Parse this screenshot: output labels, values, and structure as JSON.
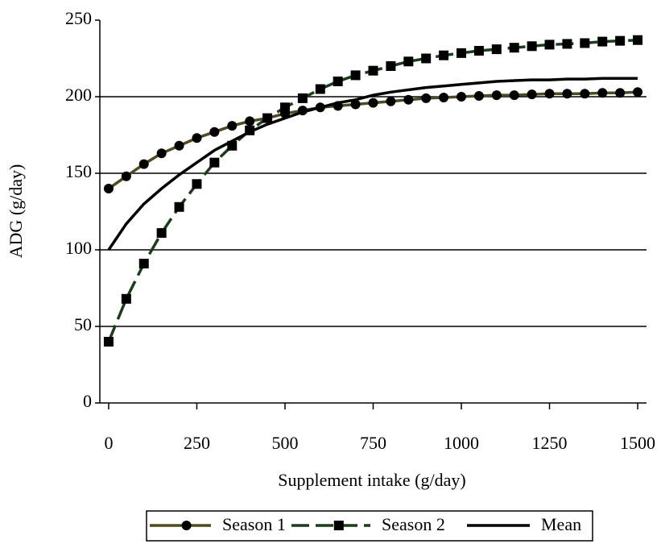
{
  "chart_data": {
    "type": "line",
    "x_label": "Supplement intake (g/day)",
    "y_label": "ADG (g/day)",
    "x": [
      0,
      50,
      100,
      150,
      200,
      250,
      300,
      350,
      400,
      450,
      500,
      550,
      600,
      650,
      700,
      750,
      800,
      850,
      900,
      950,
      1000,
      1050,
      1100,
      1150,
      1200,
      1250,
      1300,
      1350,
      1400,
      1450,
      1500
    ],
    "series": [
      {
        "name": "Season 1",
        "color": "#4f4a22",
        "marker": "circle",
        "dash": false,
        "values": [
          140,
          148,
          156,
          163,
          168,
          173,
          177,
          181,
          184,
          186,
          189,
          191,
          193,
          194,
          195,
          196,
          197,
          198,
          199,
          199.5,
          200,
          200.5,
          201,
          201,
          201.5,
          202,
          202,
          202,
          202.5,
          202.5,
          203
        ]
      },
      {
        "name": "Season 2",
        "color": "#1b3d1b",
        "marker": "square",
        "dash": true,
        "values": [
          40,
          68,
          91,
          111,
          128,
          143,
          157,
          168,
          178,
          186,
          193,
          199,
          205,
          210,
          214,
          217,
          220,
          223,
          225,
          227,
          228.5,
          230,
          231,
          232,
          233,
          234,
          234.5,
          235,
          236,
          236.5,
          237
        ]
      },
      {
        "name": "Mean",
        "color": "#000000",
        "marker": "none",
        "dash": false,
        "values": [
          100,
          117,
          130,
          140,
          149,
          157,
          165,
          171,
          177,
          182,
          186,
          190,
          193,
          196,
          198,
          201,
          203,
          204.5,
          206,
          207,
          208,
          209,
          210,
          210.5,
          211,
          211,
          211.5,
          211.5,
          212,
          212,
          212
        ]
      }
    ],
    "xlim": [
      -25,
      1525
    ],
    "xticks": [
      0,
      250,
      500,
      750,
      1000,
      1250,
      1500
    ],
    "ylim": [
      0,
      250
    ],
    "yticks": [
      0,
      50,
      100,
      150,
      200,
      250
    ],
    "grid": true,
    "legend": "bottom"
  }
}
